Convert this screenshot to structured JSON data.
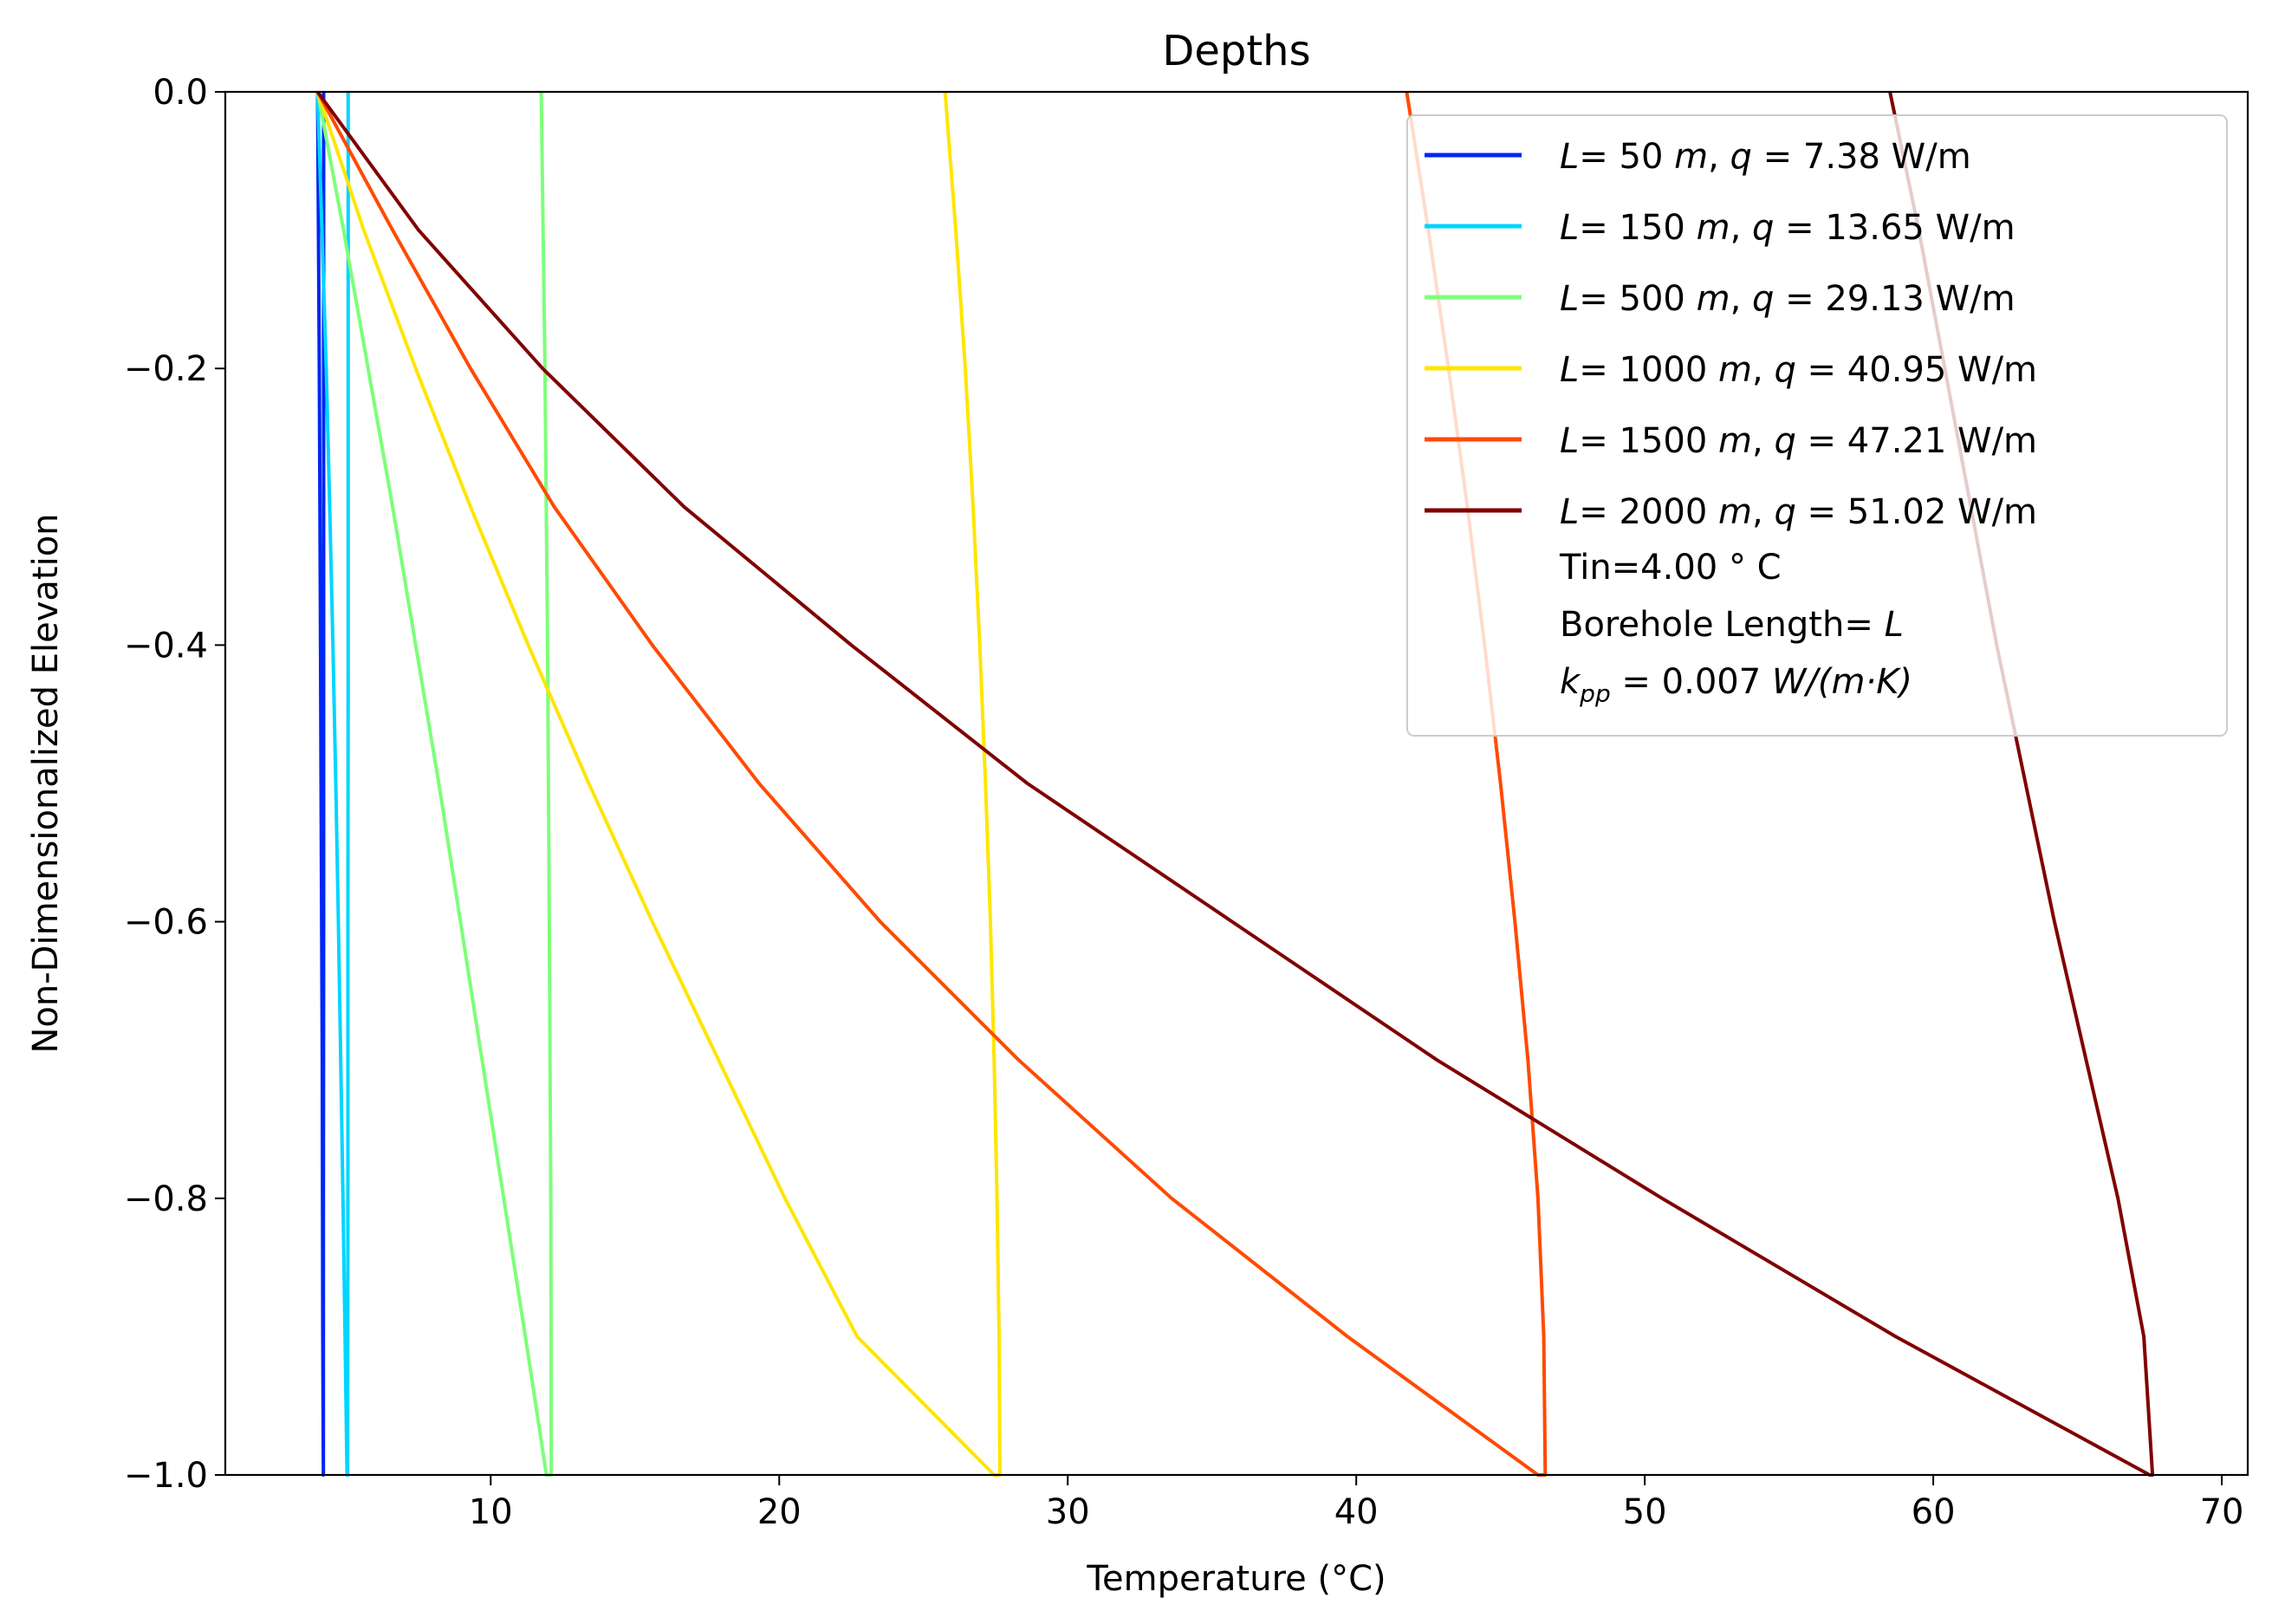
{
  "chart_data": {
    "type": "line",
    "title": "Depths",
    "xlabel": "Temperature (°C)",
    "ylabel": "Non-Dimensionalized Elevation",
    "xlim": [
      0.8,
      70.9
    ],
    "ylim": [
      -1.0,
      0.0
    ],
    "xticks": [
      10,
      20,
      30,
      40,
      50,
      60,
      70
    ],
    "xtick_labels": [
      "10",
      "20",
      "30",
      "40",
      "50",
      "60",
      "70"
    ],
    "yticks": [
      0.0,
      -0.2,
      -0.4,
      -0.6,
      -0.8,
      -1.0
    ],
    "ytick_labels": [
      "0.0",
      "−0.2",
      "−0.4",
      "−0.6",
      "−0.8",
      "−1.0"
    ],
    "grid": false,
    "legend_position": "top-right",
    "series": [
      {
        "name": "L= 50  m, q = 7.38 W/m",
        "L_label": "L",
        "L_value": "= 50",
        "m_label": "m",
        "q_label": "q",
        "q_value": "= 7.38 W/m",
        "color": "#0026f5",
        "down": {
          "y": [
            0,
            -0.1,
            -0.2,
            -0.3,
            -0.4,
            -0.5,
            -0.6,
            -0.7,
            -0.8,
            -0.9,
            -1.0
          ],
          "x": [
            4.0,
            4.03,
            4.06,
            4.08,
            4.1,
            4.12,
            4.14,
            4.16,
            4.17,
            4.18,
            4.2
          ]
        },
        "up": {
          "y": [
            -1.0,
            -0.8,
            -0.6,
            -0.4,
            -0.2,
            0.0
          ],
          "x": [
            4.2,
            4.2,
            4.21,
            4.21,
            4.21,
            4.21
          ]
        }
      },
      {
        "name": "L= 150  m, q = 13.65 W/m",
        "L_label": "L",
        "L_value": "= 150",
        "m_label": "m",
        "q_label": "q",
        "q_value": "= 13.65 W/m",
        "color": "#00d5ff",
        "down": {
          "y": [
            0,
            -0.1,
            -0.2,
            -0.3,
            -0.4,
            -0.5,
            -0.6,
            -0.7,
            -0.8,
            -0.9,
            -1.0
          ],
          "x": [
            4.0,
            4.15,
            4.3,
            4.42,
            4.53,
            4.63,
            4.72,
            4.8,
            4.88,
            4.95,
            5.02
          ]
        },
        "up": {
          "y": [
            -1.0,
            -0.8,
            -0.6,
            -0.4,
            -0.2,
            0.0
          ],
          "x": [
            5.04,
            5.05,
            5.05,
            5.06,
            5.06,
            5.06
          ]
        }
      },
      {
        "name": "L= 500  m, q = 29.13 W/m",
        "L_label": "L",
        "L_value": "= 500",
        "m_label": "m",
        "q_label": "q",
        "q_value": "= 29.13 W/m",
        "color": "#7dff7a",
        "down": {
          "y": [
            0,
            -0.1,
            -0.2,
            -0.3,
            -0.4,
            -0.5,
            -0.6,
            -0.7,
            -0.8,
            -0.9,
            -1.0
          ],
          "x": [
            4.0,
            4.9,
            5.75,
            6.6,
            7.4,
            8.2,
            8.95,
            9.7,
            10.45,
            11.2,
            11.93
          ]
        },
        "up": {
          "y": [
            -1.0,
            -0.8,
            -0.6,
            -0.4,
            -0.2,
            0.0
          ],
          "x": [
            12.1,
            12.08,
            12.03,
            11.97,
            11.88,
            11.75
          ]
        }
      },
      {
        "name": "L= 1000  m, q = 40.95 W/m",
        "L_label": "L",
        "L_value": "= 1000",
        "m_label": "m",
        "q_label": "q",
        "q_value": "= 40.95 W/m",
        "color": "#ffe500",
        "down": {
          "y": [
            0,
            -0.1,
            -0.2,
            -0.3,
            -0.4,
            -0.5,
            -0.6,
            -0.7,
            -0.8,
            -0.9,
            -1.0
          ],
          "x": [
            4.0,
            5.6,
            7.4,
            9.3,
            11.3,
            13.4,
            15.6,
            17.9,
            20.2,
            22.7,
            27.45
          ]
        },
        "up": {
          "y": [
            -1.0,
            -0.9,
            -0.8,
            -0.7,
            -0.6,
            -0.5,
            -0.4,
            -0.3,
            -0.2,
            -0.1,
            0.0
          ],
          "x": [
            27.65,
            27.62,
            27.55,
            27.45,
            27.32,
            27.15,
            26.95,
            26.72,
            26.45,
            26.12,
            25.75
          ]
        }
      },
      {
        "name": "L= 1500  m, q = 47.21 W/m",
        "L_label": "L",
        "L_value": "= 1500",
        "m_label": "m",
        "q_label": "q",
        "q_value": "= 47.21 W/m",
        "color": "#ff4a00",
        "down": {
          "y": [
            0,
            -0.1,
            -0.2,
            -0.3,
            -0.4,
            -0.5,
            -0.6,
            -0.7,
            -0.8,
            -0.9,
            -1.0
          ],
          "x": [
            4.0,
            6.6,
            9.3,
            12.2,
            15.6,
            19.3,
            23.5,
            28.3,
            33.6,
            39.7,
            46.3
          ]
        },
        "up": {
          "y": [
            -1.0,
            -0.9,
            -0.8,
            -0.7,
            -0.6,
            -0.5,
            -0.4,
            -0.3,
            -0.2,
            -0.1,
            0.0
          ],
          "x": [
            46.55,
            46.5,
            46.3,
            45.95,
            45.5,
            45.0,
            44.45,
            43.85,
            43.2,
            42.5,
            41.75
          ]
        }
      },
      {
        "name": "L= 2000  m, q = 51.02 W/m",
        "L_label": "L",
        "L_value": "= 2000",
        "m_label": "m",
        "q_label": "q",
        "q_value": "= 51.02 W/m",
        "color": "#800000",
        "down": {
          "y": [
            0,
            -0.1,
            -0.2,
            -0.3,
            -0.4,
            -0.5,
            -0.6,
            -0.7,
            -0.8,
            -0.9,
            -1.0
          ],
          "x": [
            4.0,
            7.5,
            11.8,
            16.7,
            22.5,
            28.6,
            35.7,
            42.8,
            50.6,
            58.7,
            67.5
          ]
        },
        "up": {
          "y": [
            -1.0,
            -0.9,
            -0.8,
            -0.7,
            -0.6,
            -0.5,
            -0.4,
            -0.3,
            -0.2,
            -0.1,
            0.0
          ],
          "x": [
            67.6,
            67.3,
            66.4,
            65.3,
            64.2,
            63.2,
            62.2,
            61.3,
            60.4,
            59.5,
            58.5
          ]
        }
      }
    ],
    "legend_notes": {
      "tin": "Tin=4.00 ° C",
      "borehole_prefix": "Borehole Length= ",
      "borehole_var": "L",
      "kpp_k": "k",
      "kpp_sub": "pp",
      "kpp_value": " = 0.007  ",
      "kpp_units": "W/(m·K)"
    }
  }
}
